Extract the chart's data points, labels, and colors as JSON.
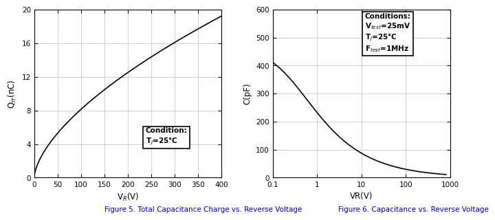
{
  "fig5": {
    "title": "Figure 5. Total Capacitance Charge vs. Reverse Voltage",
    "xlabel": "V$_{R}$(V)",
    "ylabel": "Q$_{rr}$(nC)",
    "xlim": [
      0,
      400
    ],
    "ylim": [
      0,
      20
    ],
    "xticks": [
      0,
      50,
      100,
      150,
      200,
      250,
      300,
      350,
      400
    ],
    "yticks": [
      0,
      4,
      8,
      12,
      16,
      20
    ],
    "condition_line1": "Condition:",
    "condition_line2": "T$_{J}$=25°C",
    "curve_color": "#000000",
    "grid_color": "#bbbbbb",
    "curve_a": 0.5,
    "curve_b": 0.62
  },
  "fig6": {
    "title": "Figure 6. Capacitance vs. Reverse Voltage",
    "xlabel": "VR(V)",
    "ylabel": "C(pF)",
    "ylim": [
      0,
      600
    ],
    "xtick_vals": [
      0.1,
      1,
      10,
      100,
      1000
    ],
    "xtick_labels": [
      "0.1",
      "1",
      "10",
      "100",
      "1000"
    ],
    "yticks": [
      0,
      100,
      200,
      300,
      400,
      500,
      600
    ],
    "condition_line1": "Conditions:",
    "condition_line2": "V$_{test}$=25mV",
    "condition_line3": "T$_{J}$=25°C",
    "condition_line4": "F$_{test}$=1MHz",
    "curve_color": "#000000",
    "grid_color": "#bbbbbb",
    "C0": 475,
    "Vj": 0.28,
    "m": 0.47
  },
  "title_color": "#0000cc",
  "title_fontsize": 7.5,
  "label_fontsize": 8.5,
  "tick_fontsize": 7.5,
  "cond_fontsize": 7.5
}
